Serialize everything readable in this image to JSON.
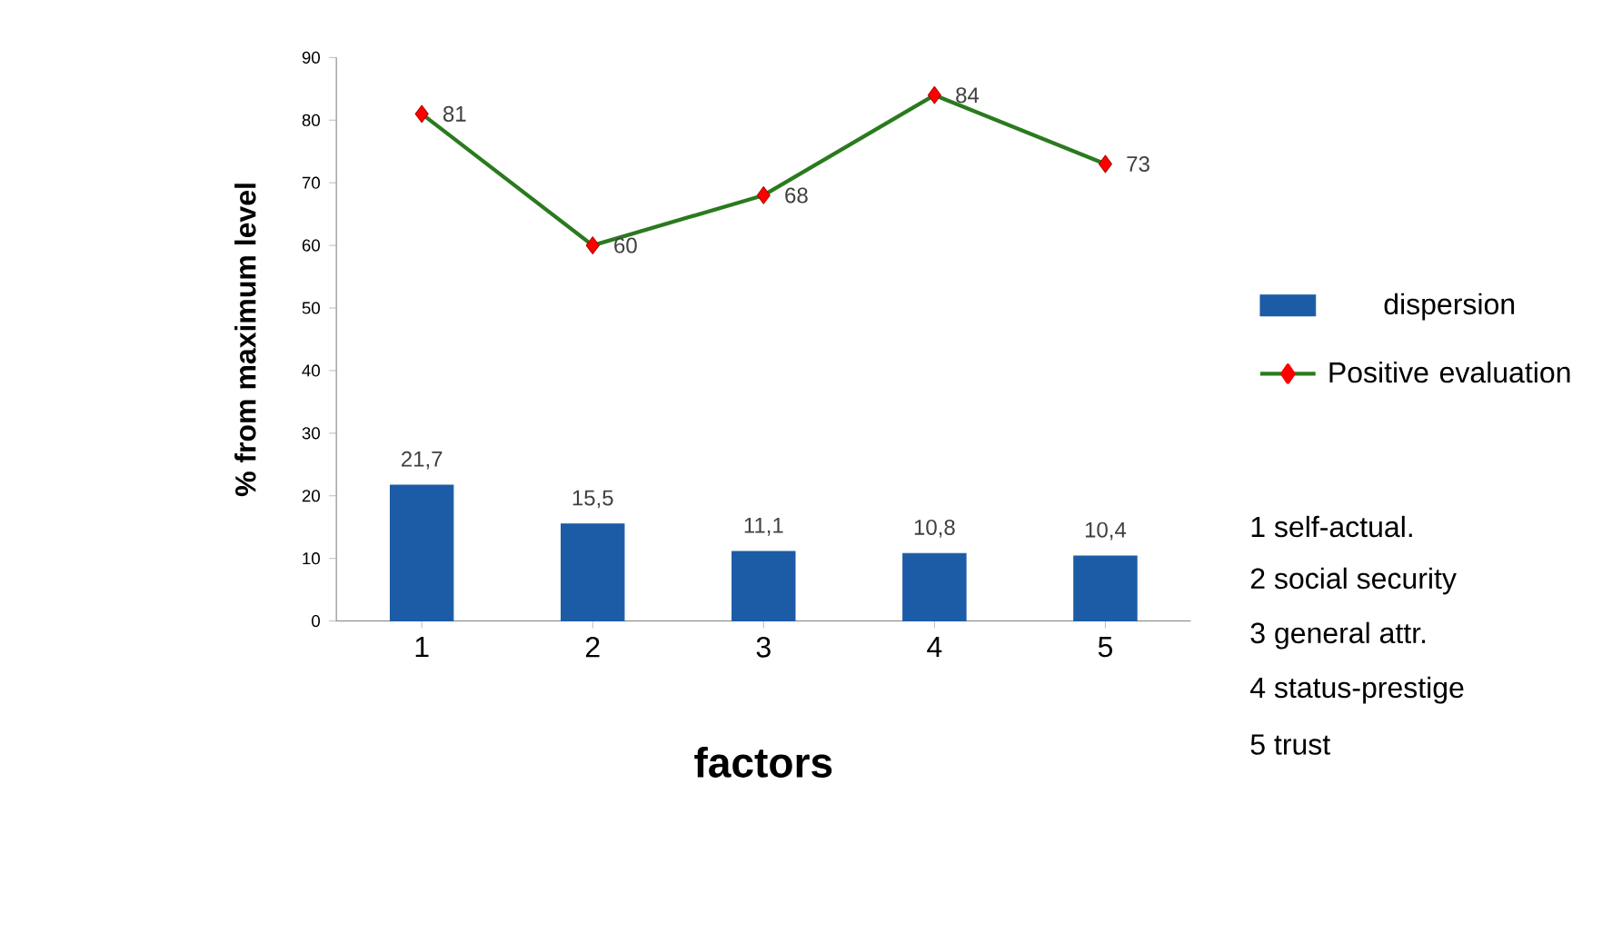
{
  "chart_data": {
    "type": "bar",
    "xlabel": "factors",
    "ylabel": "% from maximum level",
    "categories": [
      "1",
      "2",
      "3",
      "4",
      "5"
    ],
    "series": [
      {
        "name": "dispersion",
        "color": "#1c5ca6",
        "values": [
          21.7,
          15.5,
          11.1,
          10.8,
          10.4
        ],
        "value_labels": [
          "21,7",
          "15,5",
          "11,1",
          "10,8",
          "10,4"
        ]
      },
      {
        "name": "Positive evaluation",
        "type": "line",
        "color": "#2a7a1e",
        "marker": "diamond",
        "values": [
          81,
          60,
          68,
          84,
          73
        ],
        "value_labels": [
          "81",
          "60",
          "68",
          "84",
          "73"
        ]
      }
    ],
    "ylim": [
      0,
      90
    ],
    "yticks": [
      0,
      10,
      20,
      30,
      40,
      50,
      60,
      70,
      80,
      90
    ],
    "grid": false,
    "legend": "right",
    "annotations": [
      "1 self-actual.",
      "2 social security",
      "3 general attr.",
      "4 status-prestige",
      "5 trust"
    ]
  }
}
